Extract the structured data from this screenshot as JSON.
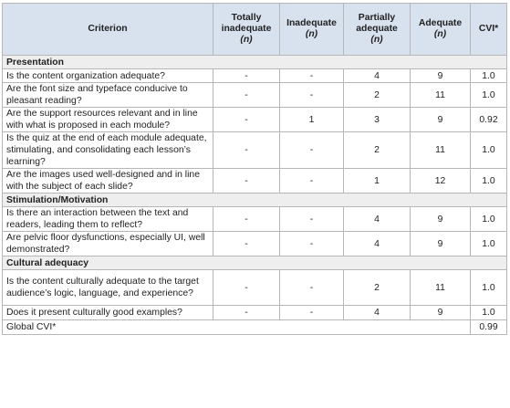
{
  "header": {
    "criterion": "Criterion",
    "totally_inadequate": "Totally inadequate",
    "inadequate": "Inadequate",
    "partially_adequate": "Partially adequate",
    "adequate": "Adequate",
    "n": "(n)",
    "cvi": "CVI*"
  },
  "sections": [
    {
      "title": "Presentation",
      "rows": [
        {
          "criterion": "Is the content organization adequate?",
          "totally_inadequate": "-",
          "inadequate": "-",
          "partially_adequate": "4",
          "adequate": "9",
          "cvi": "1.0"
        },
        {
          "criterion": "Are the font size and typeface conducive to pleasant reading?",
          "totally_inadequate": "-",
          "inadequate": "-",
          "partially_adequate": "2",
          "adequate": "11",
          "cvi": "1.0"
        },
        {
          "criterion": "Are the support resources relevant and in line with what is proposed in each module?",
          "totally_inadequate": "-",
          "inadequate": "1",
          "partially_adequate": "3",
          "adequate": "9",
          "cvi": "0.92"
        },
        {
          "criterion": "Is the quiz at the end of each module adequate, stimulating, and consolidating each lesson’s learning?",
          "totally_inadequate": "-",
          "inadequate": "-",
          "partially_adequate": "2",
          "adequate": "11",
          "cvi": "1.0"
        },
        {
          "criterion": "Are the images used well-designed and in line with the subject of each slide?",
          "totally_inadequate": "-",
          "inadequate": "-",
          "partially_adequate": "1",
          "adequate": "12",
          "cvi": "1.0"
        }
      ]
    },
    {
      "title": "Stimulation/Motivation",
      "rows": [
        {
          "criterion": "Is there an interaction between the text and readers, leading them to reflect?",
          "totally_inadequate": "-",
          "inadequate": "-",
          "partially_adequate": "4",
          "adequate": "9",
          "cvi": "1.0"
        },
        {
          "criterion": "Are pelvic floor dysfunctions, especially UI, well demonstrated?",
          "totally_inadequate": "-",
          "inadequate": "-",
          "partially_adequate": "4",
          "adequate": "9",
          "cvi": "1.0"
        }
      ]
    },
    {
      "title": "Cultural adequacy",
      "rows": [
        {
          "criterion": "Is the content culturally adequate to the target audience’s logic, language, and experience?",
          "totally_inadequate": "-",
          "inadequate": "-",
          "partially_adequate": "2",
          "adequate": "11",
          "cvi": "1.0"
        },
        {
          "criterion": "Does it present culturally good examples?",
          "totally_inadequate": "-",
          "inadequate": "-",
          "partially_adequate": "4",
          "adequate": "9",
          "cvi": "1.0"
        }
      ]
    }
  ],
  "global": {
    "label": "Global CVI*",
    "value": "0.99"
  }
}
